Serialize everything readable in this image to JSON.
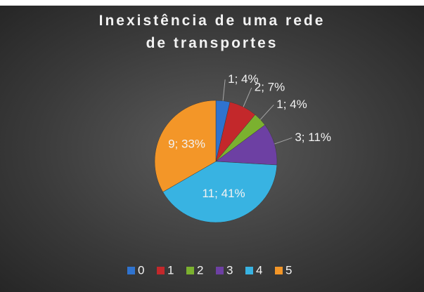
{
  "chart_data": {
    "type": "pie",
    "title": "Inexistência de uma rede de transportes",
    "categories": [
      "0",
      "1",
      "2",
      "3",
      "4",
      "5"
    ],
    "values": [
      1,
      2,
      1,
      3,
      11,
      9
    ],
    "value_labels": [
      "1; 4%",
      "2; 7%",
      "1; 4%",
      "3; 11%",
      "11; 41%",
      "9; 33%"
    ],
    "colors": [
      "#2f73cf",
      "#c3282b",
      "#7bb12f",
      "#6d40a3",
      "#38b3e2",
      "#f39628"
    ],
    "legend": "bottom"
  }
}
